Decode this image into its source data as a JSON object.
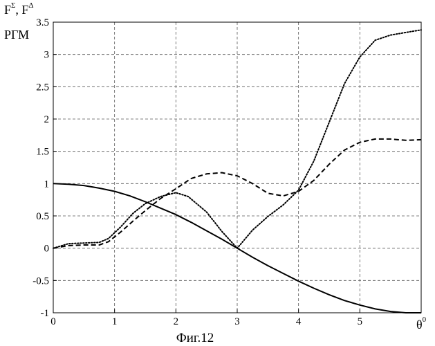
{
  "chart_data": {
    "type": "line",
    "xlabel": "θ",
    "xlabel_sup": "0",
    "ylabel_parts": [
      "F",
      "Σ",
      ", F",
      "Δ"
    ],
    "ylabel_line2": "РГМ",
    "caption": "Фиг.12",
    "xlim": [
      0,
      6
    ],
    "ylim": [
      -1,
      3.5
    ],
    "xticks": [
      0,
      1,
      2,
      3,
      4,
      5
    ],
    "yticks": [
      -1,
      -0.5,
      0,
      0.5,
      1,
      1.5,
      2,
      2.5,
      3,
      3.5
    ],
    "grid": true,
    "series": [
      {
        "style": "solid",
        "color": "#000000",
        "x": [
          0,
          0.25,
          0.5,
          0.75,
          1,
          1.25,
          1.5,
          1.75,
          2,
          2.25,
          2.5,
          2.75,
          3,
          3.25,
          3.5,
          3.75,
          4,
          4.25,
          4.5,
          4.75,
          5,
          5.25,
          5.5,
          5.75,
          6
        ],
        "y": [
          1.0,
          0.99,
          0.97,
          0.93,
          0.88,
          0.81,
          0.72,
          0.62,
          0.52,
          0.4,
          0.27,
          0.14,
          0.0,
          -0.14,
          -0.27,
          -0.39,
          -0.51,
          -0.62,
          -0.72,
          -0.81,
          -0.88,
          -0.94,
          -0.98,
          -1.0,
          -1.0
        ]
      },
      {
        "style": "dashed",
        "color": "#000000",
        "x": [
          0,
          0.25,
          0.5,
          0.75,
          0.9,
          1.1,
          1.3,
          1.5,
          1.75,
          2,
          2.25,
          2.5,
          2.75,
          3,
          3.25,
          3.5,
          3.75,
          4,
          4.25,
          4.5,
          4.75,
          5,
          5.25,
          5.5,
          5.75,
          6
        ],
        "y": [
          0.0,
          0.04,
          0.05,
          0.05,
          0.1,
          0.25,
          0.42,
          0.58,
          0.77,
          0.92,
          1.08,
          1.15,
          1.17,
          1.12,
          1.0,
          0.85,
          0.81,
          0.88,
          1.05,
          1.3,
          1.52,
          1.64,
          1.69,
          1.69,
          1.67,
          1.68
        ]
      },
      {
        "style": "dotted",
        "color": "#000000",
        "x": [
          0,
          0.25,
          0.5,
          0.75,
          0.9,
          1.1,
          1.3,
          1.5,
          1.75,
          2,
          2.2,
          2.5,
          2.75,
          3,
          3.25,
          3.5,
          3.75,
          4,
          4.25,
          4.5,
          4.75,
          5,
          5.25,
          5.5,
          5.75,
          6
        ],
        "y": [
          0.0,
          0.07,
          0.08,
          0.09,
          0.15,
          0.33,
          0.54,
          0.69,
          0.8,
          0.86,
          0.8,
          0.56,
          0.26,
          0.0,
          0.28,
          0.49,
          0.67,
          0.9,
          1.35,
          1.95,
          2.55,
          2.96,
          3.22,
          3.3,
          3.34,
          3.38
        ]
      }
    ]
  }
}
